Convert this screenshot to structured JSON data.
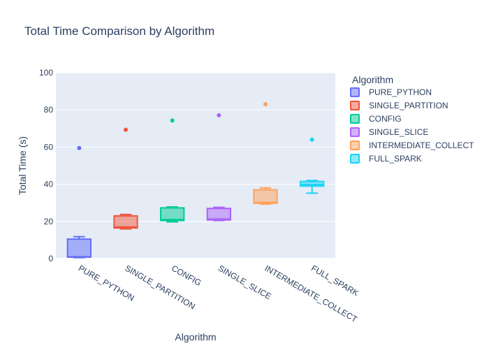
{
  "chart_data": {
    "type": "box",
    "title": "Total Time Comparison by Algorithm",
    "xlabel": "Algorithm",
    "ylabel": "Total Time (s)",
    "ylim": [
      0,
      100
    ],
    "yticks": [
      0,
      20,
      40,
      60,
      80,
      100
    ],
    "grid": true,
    "legend_title": "Algorithm",
    "legend_position": "right",
    "series": [
      {
        "name": "PURE_PYTHON",
        "color": "#636efa",
        "min": 0.5,
        "q1": 0.8,
        "median": 1.0,
        "q3": 10.5,
        "max": 11.8,
        "outliers": [
          59.5
        ]
      },
      {
        "name": "SINGLE_PARTITION",
        "color": "#ef553b",
        "min": 16.0,
        "q1": 16.5,
        "median": 17.0,
        "q3": 23.0,
        "max": 23.8,
        "outliers": [
          69.3
        ]
      },
      {
        "name": "CONFIG",
        "color": "#00cc96",
        "min": 19.8,
        "q1": 20.5,
        "median": 21.0,
        "q3": 27.3,
        "max": 27.8,
        "outliers": [
          74.3
        ]
      },
      {
        "name": "SINGLE_SLICE",
        "color": "#ab63fa",
        "min": 20.5,
        "q1": 20.8,
        "median": 21.3,
        "q3": 27.0,
        "max": 27.6,
        "outliers": [
          77.1
        ]
      },
      {
        "name": "INTERMEDIATE_COLLECT",
        "color": "#ffa15a",
        "min": 29.3,
        "q1": 29.8,
        "median": 30.2,
        "q3": 37.0,
        "max": 38.0,
        "outliers": [
          83.1
        ]
      },
      {
        "name": "FULL_SPARK",
        "color": "#19d3f3",
        "min": 35.2,
        "q1": 39.0,
        "median": 39.8,
        "q3": 41.5,
        "max": 42.0,
        "outliers": [
          64.0
        ]
      }
    ]
  }
}
